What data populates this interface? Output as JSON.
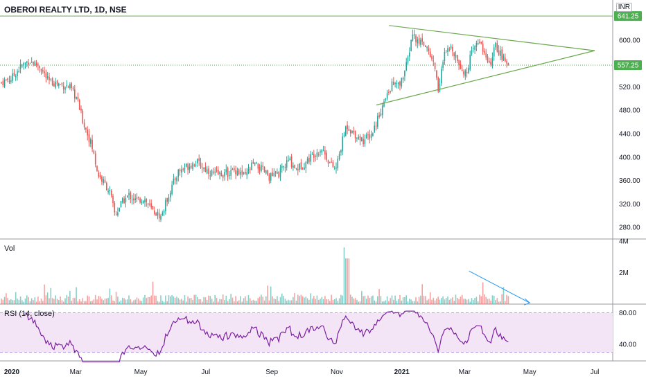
{
  "title": "OBEROI REALTY LTD, 1D, NSE",
  "currency": "INR",
  "panes": {
    "volume": "Vol",
    "rsi": "RSI (14, close)"
  },
  "colors": {
    "up": "#26a69a",
    "down": "#ef5350",
    "pattern": "#6aa84f",
    "last_price": "#4caf50",
    "resistance": "#6aa84f",
    "rsi_line": "#7b1fa2",
    "rsi_band": "#f3e5f5",
    "vol_trend": "#2196f3"
  },
  "badges": {
    "resistance": "641.25",
    "last": "557.25"
  },
  "chart_data": {
    "type": "candlestick",
    "price_axis": {
      "ticks": [
        280,
        320,
        360,
        400,
        440,
        480,
        520,
        560,
        600
      ],
      "labels": [
        "280.00",
        "320.00",
        "360.00",
        "400.00",
        "440.00",
        "480.00",
        "520.00",
        "560.00",
        "600.00"
      ],
      "ylim": [
        260,
        652
      ]
    },
    "x_axis": {
      "labels": [
        "2020",
        "Mar",
        "May",
        "Jul",
        "Sep",
        "Nov",
        "2021",
        "Mar",
        "May",
        "Jul"
      ],
      "dates": [
        "2020-01-01",
        "2020-03-01",
        "2020-05-01",
        "2020-07-01",
        "2020-09-01",
        "2020-11-01",
        "2021-01-01",
        "2021-03-01",
        "2021-05-01",
        "2021-07-01"
      ]
    },
    "close_path": [
      [
        "2019-12-15",
        522
      ],
      [
        "2020-01-01",
        535
      ],
      [
        "2020-01-08",
        552
      ],
      [
        "2020-01-17",
        565
      ],
      [
        "2020-01-27",
        556
      ],
      [
        "2020-02-04",
        530
      ],
      [
        "2020-02-14",
        525
      ],
      [
        "2020-02-24",
        520
      ],
      [
        "2020-03-02",
        500
      ],
      [
        "2020-03-08",
        460
      ],
      [
        "2020-03-16",
        420
      ],
      [
        "2020-03-22",
        370
      ],
      [
        "2020-03-28",
        355
      ],
      [
        "2020-04-02",
        340
      ],
      [
        "2020-04-07",
        300
      ],
      [
        "2020-04-13",
        322
      ],
      [
        "2020-04-20",
        335
      ],
      [
        "2020-04-27",
        325
      ],
      [
        "2020-05-04",
        330
      ],
      [
        "2020-05-11",
        310
      ],
      [
        "2020-05-20",
        298
      ],
      [
        "2020-05-28",
        340
      ],
      [
        "2020-06-05",
        375
      ],
      [
        "2020-06-14",
        385
      ],
      [
        "2020-06-22",
        392
      ],
      [
        "2020-06-30",
        380
      ],
      [
        "2020-07-10",
        370
      ],
      [
        "2020-07-20",
        372
      ],
      [
        "2020-07-30",
        378
      ],
      [
        "2020-08-07",
        366
      ],
      [
        "2020-08-14",
        388
      ],
      [
        "2020-08-22",
        380
      ],
      [
        "2020-08-30",
        366
      ],
      [
        "2020-09-08",
        372
      ],
      [
        "2020-09-17",
        395
      ],
      [
        "2020-09-24",
        380
      ],
      [
        "2020-10-01",
        388
      ],
      [
        "2020-10-10",
        405
      ],
      [
        "2020-10-18",
        415
      ],
      [
        "2020-10-26",
        388
      ],
      [
        "2020-10-31",
        378
      ],
      [
        "2020-11-05",
        418
      ],
      [
        "2020-11-10",
        455
      ],
      [
        "2020-11-16",
        442
      ],
      [
        "2020-11-26",
        428
      ],
      [
        "2020-12-04",
        440
      ],
      [
        "2020-12-11",
        475
      ],
      [
        "2020-12-17",
        500
      ],
      [
        "2020-12-23",
        525
      ],
      [
        "2020-12-30",
        522
      ],
      [
        "2021-01-06",
        560
      ],
      [
        "2021-01-11",
        612
      ],
      [
        "2021-01-16",
        595
      ],
      [
        "2021-01-20",
        600
      ],
      [
        "2021-01-25",
        585
      ],
      [
        "2021-02-01",
        555
      ],
      [
        "2021-02-04",
        515
      ],
      [
        "2021-02-10",
        575
      ],
      [
        "2021-02-17",
        588
      ],
      [
        "2021-02-24",
        560
      ],
      [
        "2021-03-02",
        540
      ],
      [
        "2021-03-06",
        570
      ],
      [
        "2021-03-11",
        590
      ],
      [
        "2021-03-16",
        600
      ],
      [
        "2021-03-19",
        578
      ],
      [
        "2021-03-24",
        555
      ],
      [
        "2021-03-30",
        590
      ],
      [
        "2021-04-06",
        568
      ],
      [
        "2021-04-11",
        557
      ]
    ],
    "pattern_lines": [
      {
        "name": "triangle-upper",
        "from": [
          "2020-12-20",
          625
        ],
        "to": [
          "2021-07-01",
          582
        ]
      },
      {
        "name": "triangle-lower",
        "from": [
          "2020-12-08",
          489
        ],
        "to": [
          "2021-07-01",
          582
        ]
      }
    ],
    "levels": {
      "resistance": 641.25,
      "last": 557.25
    },
    "volume": {
      "axis_labels": [
        "4M",
        "2M"
      ],
      "axis_values": [
        4000000,
        2000000
      ],
      "trend_from": [
        "2021-03-05",
        2100000
      ],
      "trend_to": [
        "2021-05-01",
        80000
      ]
    },
    "rsi": {
      "levels": [
        80,
        40
      ],
      "labels": [
        "80.00",
        "40.00"
      ],
      "band": [
        30,
        80
      ],
      "last": 45
    }
  }
}
